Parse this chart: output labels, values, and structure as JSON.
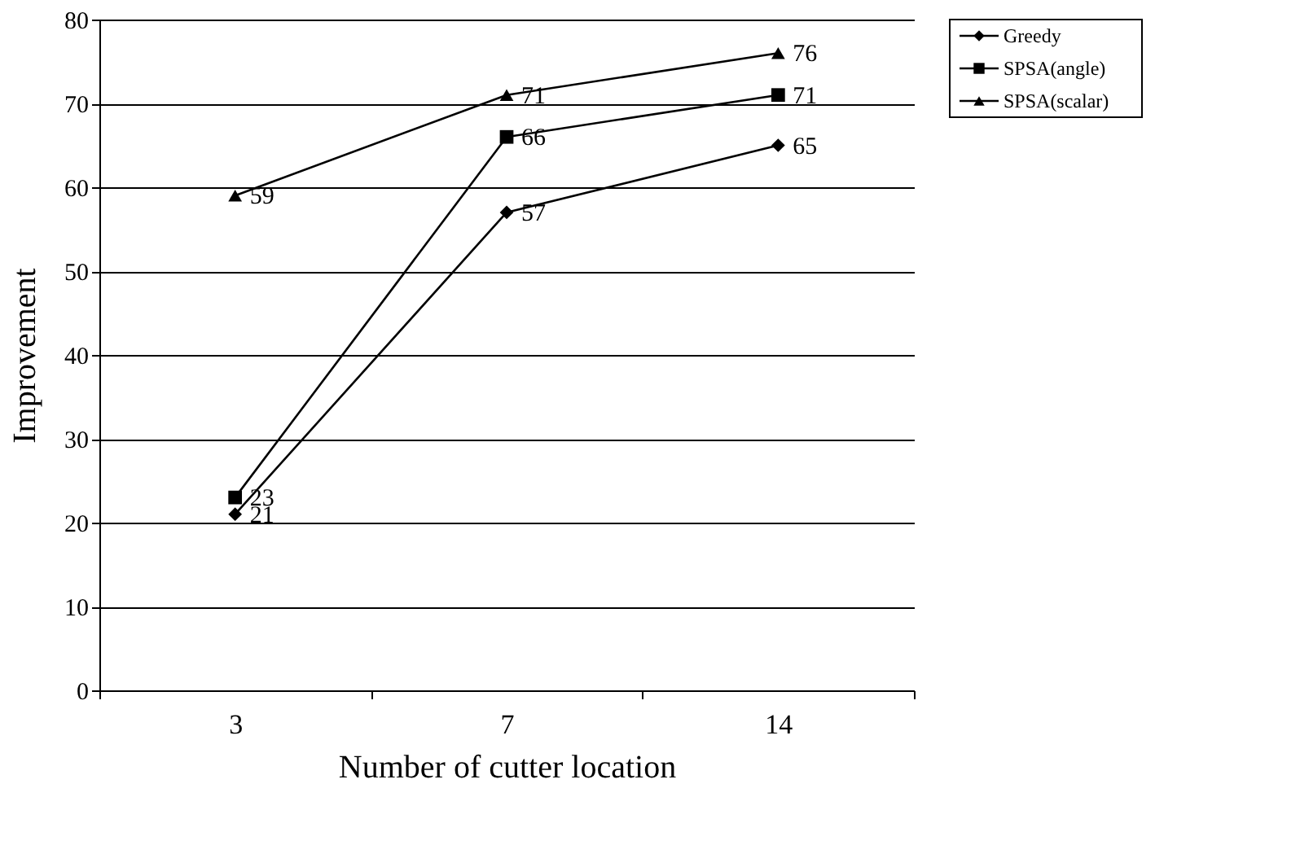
{
  "chart_data": {
    "type": "line",
    "xlabel": "Number of cutter location",
    "ylabel": "Improvement",
    "categories": [
      "3",
      "7",
      "14"
    ],
    "series": [
      {
        "name": "Greedy",
        "color": "#000000",
        "marker": "diamond",
        "values": [
          21,
          57,
          65
        ]
      },
      {
        "name": "SPSA(angle)",
        "color": "#000000",
        "marker": "square",
        "values": [
          23,
          66,
          71
        ]
      },
      {
        "name": "SPSA(scalar)",
        "color": "#000000",
        "marker": "triangle",
        "values": [
          59,
          71,
          76
        ]
      }
    ],
    "ylim": [
      0,
      80
    ],
    "yticks": [
      0,
      10,
      20,
      30,
      40,
      50,
      60,
      70,
      80
    ],
    "grid": "y",
    "legend": "right",
    "data_labels": true,
    "line_style": "solid"
  }
}
